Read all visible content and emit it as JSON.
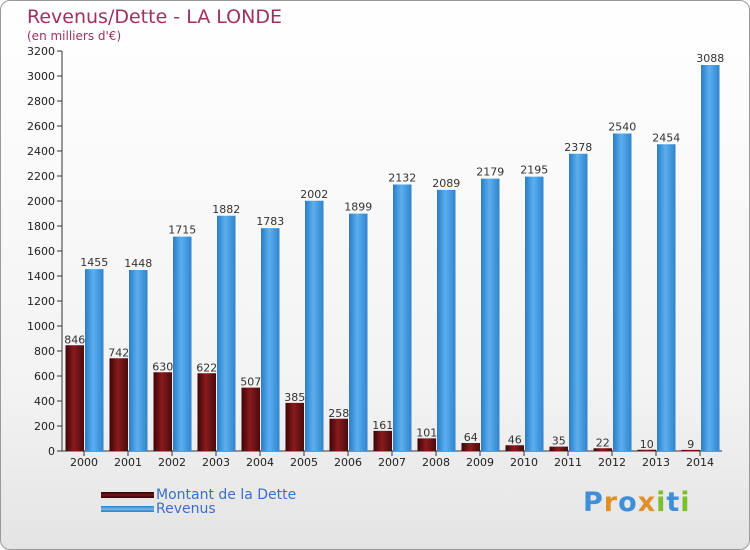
{
  "title": "Revenus/Dette - LA LONDE",
  "subtitle": "(en milliers d'€)",
  "logo": "Proxiti",
  "colors": {
    "dette": "#6b0f12",
    "revenus": "#4aa3e6",
    "title": "#a03060",
    "legend_text": "#3a6fc8"
  },
  "chart_data": {
    "type": "bar",
    "title": "Revenus/Dette - LA LONDE",
    "ylabel": "(en milliers d'€)",
    "xlabel": "",
    "categories": [
      "2000",
      "2001",
      "2002",
      "2003",
      "2004",
      "2005",
      "2006",
      "2007",
      "2008",
      "2009",
      "2010",
      "2011",
      "2012",
      "2013",
      "2014"
    ],
    "series": [
      {
        "name": "Montant de la Dette",
        "values": [
          846,
          742,
          630,
          622,
          507,
          385,
          258,
          161,
          101,
          64,
          46,
          35,
          22,
          10,
          9
        ]
      },
      {
        "name": "Revenus",
        "values": [
          1455,
          1448,
          1715,
          1882,
          1783,
          2002,
          1899,
          2132,
          2089,
          2179,
          2195,
          2378,
          2540,
          2454,
          3088
        ]
      }
    ],
    "ylim": [
      0,
      3200
    ],
    "yticks": [
      0,
      200,
      400,
      600,
      800,
      1000,
      1200,
      1400,
      1600,
      1800,
      2000,
      2200,
      2400,
      2600,
      2800,
      3000,
      3200
    ],
    "grid": false,
    "legend_position": "bottom-left"
  }
}
